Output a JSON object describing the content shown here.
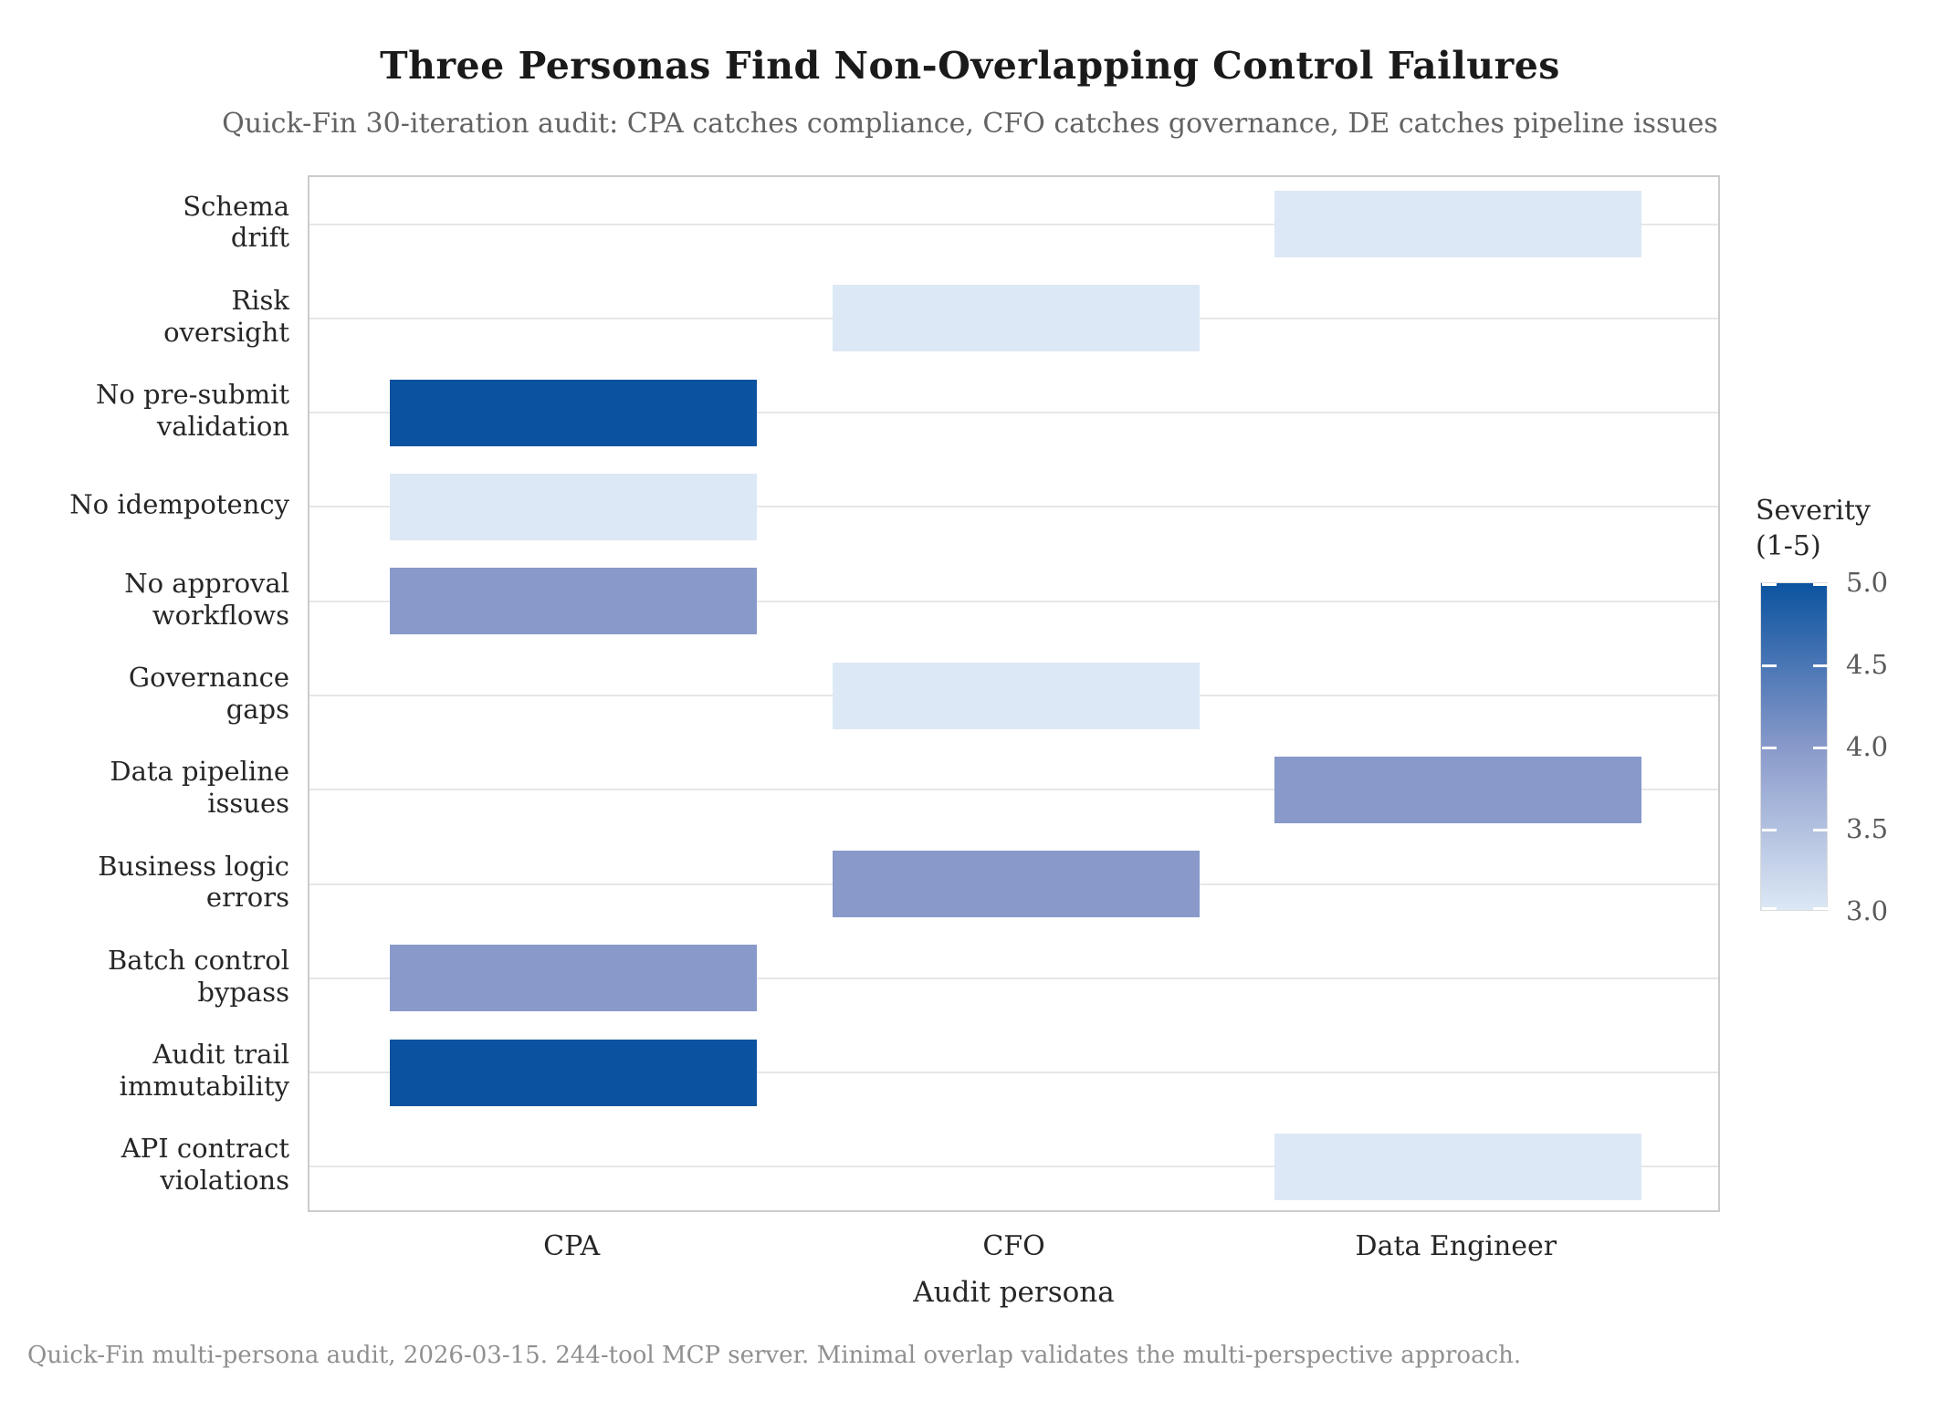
{
  "figure": {
    "footer": "Quick-Fin multi-persona audit, 2026-03-15. 244-tool MCP server. Minimal overlap validates the multi-perspective approach."
  },
  "chart_data": {
    "type": "heatmap",
    "title": "Three Personas Find Non-Overlapping Control Failures",
    "subtitle": "Quick-Fin 30-iteration audit: CPA catches compliance, CFO catches governance, DE catches pipeline issues",
    "xlabel": "Audit persona",
    "x_categories": [
      "CPA",
      "CFO",
      "Data Engineer"
    ],
    "y_categories": [
      "Schema drift",
      "Risk oversight",
      "No pre-submit validation",
      "No idempotency",
      "No approval workflows",
      "Governance gaps",
      "Data pipeline issues",
      "Business logic errors",
      "Batch control bypass",
      "Audit trail immutability",
      "API contract violations"
    ],
    "rows": [
      {
        "label": "Schema\ndrift",
        "column": "Data Engineer",
        "severity": 3
      },
      {
        "label": "Risk\noversight",
        "column": "CFO",
        "severity": 3
      },
      {
        "label": "No pre-submit\nvalidation",
        "column": "CPA",
        "severity": 5
      },
      {
        "label": "No idempotency",
        "column": "CPA",
        "severity": 3
      },
      {
        "label": "No approval\nworkflows",
        "column": "CPA",
        "severity": 4
      },
      {
        "label": "Governance\ngaps",
        "column": "CFO",
        "severity": 3
      },
      {
        "label": "Data pipeline\nissues",
        "column": "Data Engineer",
        "severity": 4
      },
      {
        "label": "Business logic\nerrors",
        "column": "CFO",
        "severity": 4
      },
      {
        "label": "Batch control\nbypass",
        "column": "CPA",
        "severity": 4
      },
      {
        "label": "Audit trail\nimmutability",
        "column": "CPA",
        "severity": 5
      },
      {
        "label": "API contract\nviolations",
        "column": "Data Engineer",
        "severity": 3
      }
    ],
    "severity_colors": {
      "3": "#dce8f5",
      "4": "#8899ca",
      "5": "#0b53a0"
    },
    "colorbar": {
      "title": "Severity\n(1-5)",
      "ticks": [
        "5.0",
        "4.5",
        "4.0",
        "3.5",
        "3.0"
      ],
      "min": 3.0,
      "max": 5.0
    },
    "grid": "horizontal",
    "legend_position": "right"
  }
}
